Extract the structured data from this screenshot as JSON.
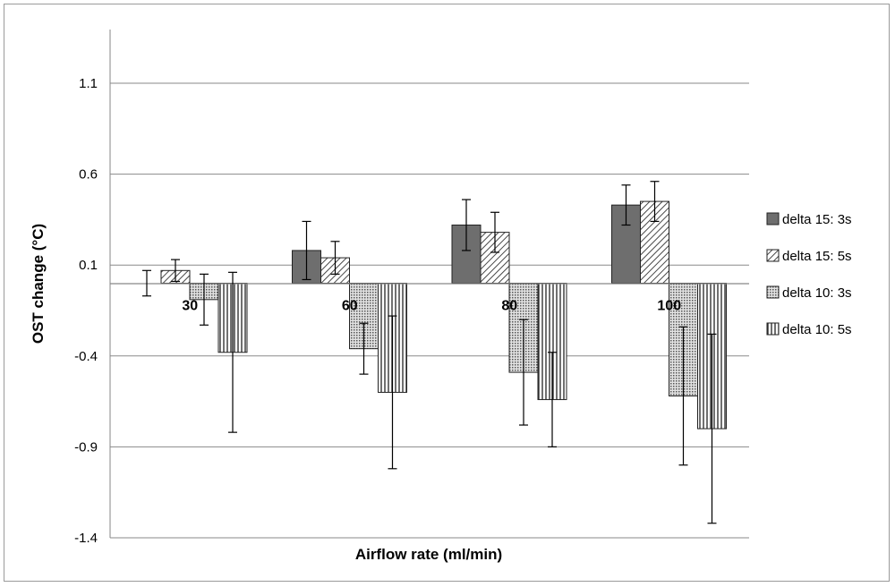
{
  "chart_data": {
    "type": "bar",
    "title": "",
    "xlabel": "Airflow rate (ml/min)",
    "ylabel": "OST change (°C)",
    "categories": [
      "30",
      "60",
      "80",
      "100"
    ],
    "yticks": [
      "1.1",
      "0.6",
      "0.1",
      "-0.4",
      "-0.9",
      "-1.4"
    ],
    "ylim": [
      -1.4,
      1.4
    ],
    "grid": true,
    "legend_position": "right",
    "series": [
      {
        "name": "delta 15: 3s",
        "pattern": "solid-dark",
        "values": [
          0.0,
          0.18,
          0.32,
          0.43
        ],
        "errors": [
          0.07,
          0.16,
          0.14,
          0.11
        ]
      },
      {
        "name": "delta 15: 5s",
        "pattern": "diagonal",
        "values": [
          0.07,
          0.14,
          0.28,
          0.45
        ],
        "errors": [
          0.06,
          0.09,
          0.11,
          0.11
        ]
      },
      {
        "name": "delta 10: 3s",
        "pattern": "dots",
        "values": [
          -0.09,
          -0.36,
          -0.49,
          -0.62
        ],
        "errors": [
          0.14,
          0.14,
          0.29,
          0.38
        ]
      },
      {
        "name": "delta 10: 5s",
        "pattern": "vertical",
        "values": [
          -0.38,
          -0.6,
          -0.64,
          -0.8
        ],
        "errors": [
          0.44,
          0.42,
          0.26,
          0.52
        ]
      }
    ]
  }
}
